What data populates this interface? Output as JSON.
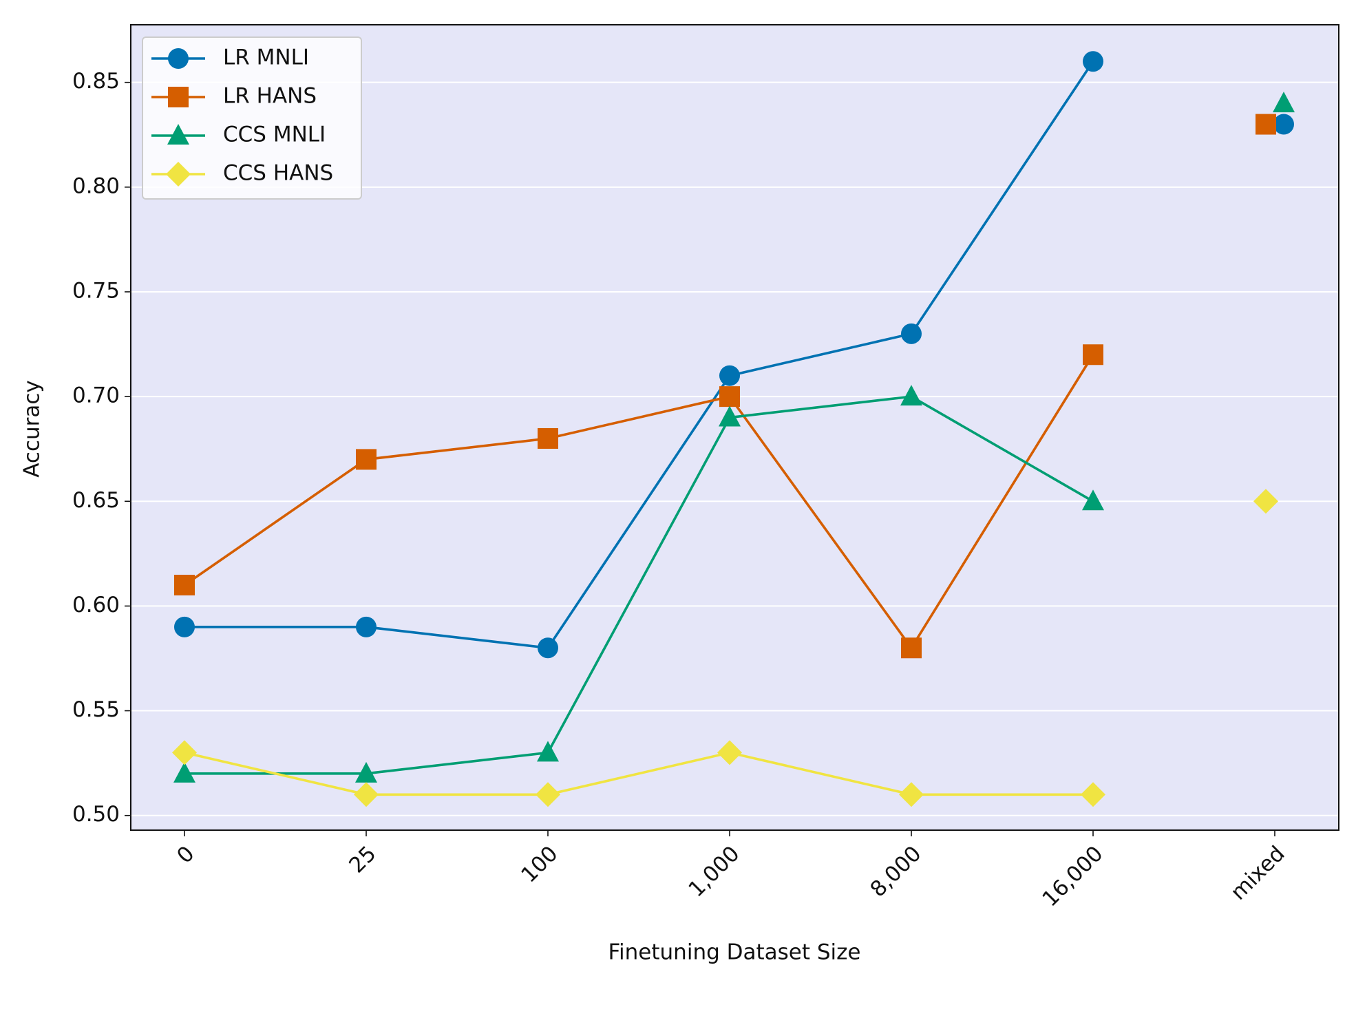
{
  "chart_data": {
    "type": "line",
    "xlabel": "Finetuning Dataset Size",
    "ylabel": "Accuracy",
    "categories": [
      "0",
      "25",
      "100",
      "1,000",
      "8,000",
      "16,000",
      "mixed"
    ],
    "series": [
      {
        "name": "LR MNLI",
        "color": "#0072b2",
        "marker": "circle",
        "values": [
          0.59,
          0.59,
          0.58,
          0.71,
          0.73,
          0.86,
          0.83
        ]
      },
      {
        "name": "LR HANS",
        "color": "#d55e00",
        "marker": "square",
        "values": [
          0.61,
          0.67,
          0.68,
          0.7,
          0.58,
          0.72,
          0.83
        ]
      },
      {
        "name": "CCS MNLI",
        "color": "#009e73",
        "marker": "triangle",
        "values": [
          0.52,
          0.52,
          0.53,
          0.69,
          0.7,
          0.65,
          0.84
        ]
      },
      {
        "name": "CCS HANS",
        "color": "#f0e442",
        "marker": "diamond",
        "values": [
          0.53,
          0.51,
          0.51,
          0.53,
          0.51,
          0.51,
          0.65
        ]
      }
    ],
    "ylim": [
      0.493,
      0.8775
    ],
    "yticks": [
      {
        "value": 0.5,
        "label": "0.50"
      },
      0.55,
      {
        "value": 0.6,
        "label": "0.60"
      },
      0.65,
      {
        "value": 0.7,
        "label": "0.70"
      },
      0.75,
      {
        "value": 0.8,
        "label": "0.80"
      },
      0.85
    ],
    "grid": true,
    "legend": "upper left",
    "background": "#e5e6f8"
  }
}
